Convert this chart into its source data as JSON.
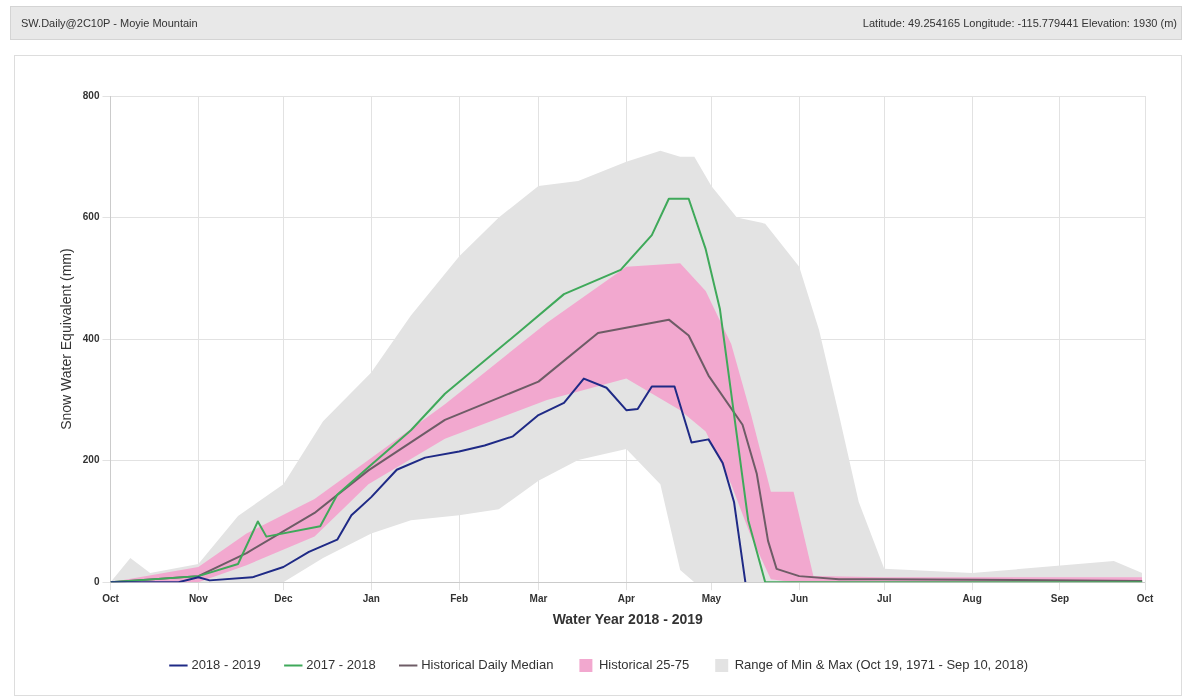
{
  "chart_data": {
    "type": "line",
    "title": "SW.Daily@2C10P - Moyie Mountain",
    "subtitle": "Latitude: 49.254165 Longitude: -115.779441 Elevation: 1930 (m)",
    "xlabel": "Water Year 2018 - 2019",
    "ylabel": "Snow Water Equivalent (mm)",
    "xlim": [
      "2018-10-01",
      "2019-10-01"
    ],
    "xticks": [
      {
        "value": "2018-10-01",
        "label": "Oct"
      },
      {
        "value": "2018-11-01",
        "label": "Nov"
      },
      {
        "value": "2018-12-01",
        "label": "Dec"
      },
      {
        "value": "2019-01-01",
        "label": "Jan"
      },
      {
        "value": "2019-02-01",
        "label": "Feb"
      },
      {
        "value": "2019-03-01",
        "label": "Mar"
      },
      {
        "value": "2019-04-01",
        "label": "Apr"
      },
      {
        "value": "2019-05-01",
        "label": "May"
      },
      {
        "value": "2019-06-01",
        "label": "Jun"
      },
      {
        "value": "2019-07-01",
        "label": "Jul"
      },
      {
        "value": "2019-08-01",
        "label": "Aug"
      },
      {
        "value": "2019-09-01",
        "label": "Sep"
      },
      {
        "value": "2019-10-01",
        "label": "Oct"
      }
    ],
    "ylim": [
      0,
      800
    ],
    "yticks": [
      0,
      200,
      400,
      600,
      800
    ],
    "grid": true,
    "legend": "bottom",
    "marker": "none",
    "line_style": "solid",
    "series": [
      {
        "name": "2018 - 2019",
        "color": "#1f2a86",
        "x": [
          "2018-10-01",
          "2018-10-25",
          "2018-11-01",
          "2018-11-05",
          "2018-11-20",
          "2018-12-01",
          "2018-12-10",
          "2018-12-20",
          "2018-12-25",
          "2019-01-01",
          "2019-01-10",
          "2019-01-20",
          "2019-02-01",
          "2019-02-10",
          "2019-02-20",
          "2019-03-01",
          "2019-03-10",
          "2019-03-17",
          "2019-03-25",
          "2019-04-01",
          "2019-04-05",
          "2019-04-10",
          "2019-04-18",
          "2019-04-24",
          "2019-04-30",
          "2019-05-05",
          "2019-05-09",
          "2019-05-13"
        ],
        "values": [
          0,
          0,
          8,
          3,
          8,
          25,
          50,
          70,
          110,
          140,
          185,
          205,
          215,
          225,
          240,
          275,
          295,
          335,
          320,
          283,
          285,
          322,
          322,
          230,
          235,
          196,
          132,
          0
        ]
      },
      {
        "name": "2017 - 2018",
        "color": "#3fa95a",
        "x": [
          "2018-10-01",
          "2018-11-01",
          "2018-11-15",
          "2018-11-22",
          "2018-11-25",
          "2018-12-14",
          "2018-12-20",
          "2018-12-31",
          "2019-01-15",
          "2019-01-27",
          "2019-02-23",
          "2019-03-10",
          "2019-03-30",
          "2019-04-10",
          "2019-04-16",
          "2019-04-23",
          "2019-04-29",
          "2019-05-04",
          "2019-05-09",
          "2019-05-14",
          "2019-05-20",
          "2019-07-01",
          "2019-09-30"
        ],
        "values": [
          0,
          10,
          30,
          100,
          75,
          92,
          144,
          189,
          250,
          310,
          415,
          474,
          514,
          571,
          631,
          631,
          548,
          450,
          276,
          102,
          0,
          0,
          0
        ]
      },
      {
        "name": "Historical Daily Median",
        "color": "#6e5c66",
        "x": [
          "2018-10-01",
          "2018-11-01",
          "2018-11-18",
          "2018-12-12",
          "2018-12-31",
          "2019-01-27",
          "2019-03-01",
          "2019-03-22",
          "2019-04-16",
          "2019-04-23",
          "2019-04-30",
          "2019-05-12",
          "2019-05-17",
          "2019-05-21",
          "2019-05-24",
          "2019-06-01",
          "2019-06-15",
          "2019-07-01",
          "2019-09-30"
        ],
        "values": [
          0,
          10,
          48,
          114,
          184,
          267,
          330,
          410,
          432,
          406,
          340,
          259,
          179,
          68,
          22,
          10,
          5,
          5,
          2
        ]
      },
      {
        "name": "Historical 25-75",
        "type": "area",
        "color": "#f2a8cf",
        "x": [
          "2018-10-01",
          "2018-11-01",
          "2018-11-18",
          "2018-12-12",
          "2018-12-31",
          "2019-01-27",
          "2019-03-04",
          "2019-04-01",
          "2019-04-20",
          "2019-04-29",
          "2019-05-08",
          "2019-05-15",
          "2019-05-22",
          "2019-05-30",
          "2019-06-06",
          "2019-07-01",
          "2019-09-30"
        ],
        "values": [
          null,
          null,
          null,
          null,
          null,
          null,
          null,
          null,
          null,
          null,
          null,
          null,
          null,
          null,
          null,
          null,
          null
        ],
        "lower": [
          0,
          0,
          28,
          75,
          161,
          236,
          300,
          335,
          283,
          248,
          161,
          75,
          5,
          0,
          0,
          0,
          0
        ],
        "upper": [
          0,
          25,
          80,
          137,
          201,
          293,
          427,
          519,
          525,
          479,
          392,
          276,
          149,
          149,
          10,
          8,
          8
        ]
      },
      {
        "name": "Range of Min & Max (Oct 19, 1971 - Sep 10, 2018)",
        "type": "area",
        "color": "#e3e3e3",
        "x": [
          "2018-10-01",
          "2018-10-08",
          "2018-10-15",
          "2018-11-01",
          "2018-11-15",
          "2018-12-01",
          "2018-12-15",
          "2019-01-01",
          "2019-01-15",
          "2019-02-01",
          "2019-02-15",
          "2019-03-01",
          "2019-03-15",
          "2019-04-01",
          "2019-04-13",
          "2019-04-20",
          "2019-04-25",
          "2019-05-01",
          "2019-05-10",
          "2019-05-20",
          "2019-06-01",
          "2019-06-08",
          "2019-06-15",
          "2019-06-22",
          "2019-07-01",
          "2019-08-01",
          "2019-09-20",
          "2019-09-30"
        ],
        "values": [
          null,
          null,
          null,
          null,
          null,
          null,
          null,
          null,
          null,
          null,
          null,
          null,
          null,
          null,
          null,
          null,
          null,
          null,
          null,
          null,
          null,
          null,
          null,
          null,
          null,
          null,
          null,
          null
        ],
        "lower": [
          0,
          0,
          0,
          0,
          0,
          0,
          40,
          80,
          102,
          110,
          120,
          167,
          201,
          219,
          161,
          20,
          0,
          0,
          0,
          0,
          0,
          0,
          0,
          0,
          0,
          0,
          0,
          0
        ],
        "upper": [
          0,
          40,
          15,
          30,
          109,
          161,
          265,
          345,
          439,
          536,
          600,
          652,
          660,
          692,
          710,
          700,
          700,
          652,
          600,
          590,
          519,
          415,
          276,
          132,
          22,
          15,
          35,
          15
        ]
      }
    ]
  }
}
